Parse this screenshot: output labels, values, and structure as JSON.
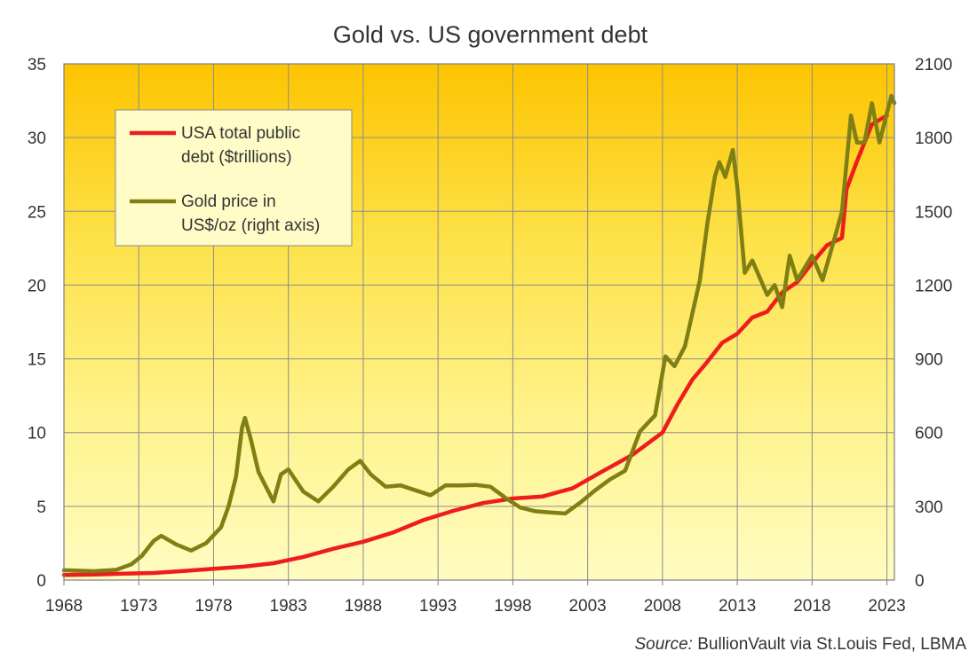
{
  "chart_data": {
    "type": "line",
    "title": "Gold vs. US government  debt",
    "source_label": "Source:",
    "source_text": " BullionVault via  St.Louis Fed, LBMA",
    "x_ticks": [
      "1968",
      "1973",
      "1978",
      "1983",
      "1988",
      "1993",
      "1998",
      "2003",
      "2008",
      "2013",
      "2018",
      "2023"
    ],
    "xlim": [
      1968,
      2023.5
    ],
    "y_left": {
      "ticks": [
        "0",
        "5",
        "10",
        "15",
        "20",
        "25",
        "30",
        "35"
      ],
      "lim": [
        0,
        35
      ]
    },
    "y_right": {
      "ticks": [
        "0",
        "300",
        "600",
        "900",
        "1200",
        "1500",
        "1800",
        "2100"
      ],
      "lim": [
        0,
        2100
      ]
    },
    "grid": true,
    "legend_position": "top-left",
    "series": [
      {
        "name_line1": "USA total public",
        "name_line2": "debt ($trillions)",
        "axis": "left",
        "color": "#ee1c1c",
        "x": [
          1968,
          1970,
          1972,
          1974,
          1976,
          1978,
          1980,
          1982,
          1984,
          1986,
          1988,
          1990,
          1992,
          1994,
          1996,
          1998,
          2000,
          2002,
          2004,
          2006,
          2008,
          2009,
          2010,
          2011,
          2012,
          2013,
          2014,
          2015,
          2016,
          2017,
          2018,
          2019,
          2020,
          2020.3,
          2021,
          2022,
          2023
        ],
        "values": [
          0.35,
          0.38,
          0.43,
          0.48,
          0.62,
          0.77,
          0.91,
          1.14,
          1.57,
          2.12,
          2.6,
          3.23,
          4.06,
          4.69,
          5.22,
          5.53,
          5.67,
          6.23,
          7.38,
          8.5,
          10.0,
          11.9,
          13.6,
          14.8,
          16.1,
          16.7,
          17.8,
          18.2,
          19.5,
          20.2,
          21.5,
          22.7,
          23.2,
          26.5,
          28.4,
          30.9,
          31.5
        ]
      },
      {
        "name_line1": "Gold price in",
        "name_line2": "US$/oz  (right axis)",
        "axis": "right",
        "color": "#7f7f14",
        "x": [
          1968,
          1970,
          1971.5,
          1972.5,
          1973.2,
          1974,
          1974.5,
          1975.5,
          1976.5,
          1977.5,
          1978.5,
          1979,
          1979.5,
          1979.9,
          1980.1,
          1980.5,
          1981,
          1981.5,
          1982,
          1982.5,
          1983,
          1984,
          1985,
          1986,
          1987,
          1987.8,
          1988.5,
          1989.5,
          1990.5,
          1991.5,
          1992.5,
          1993.5,
          1994.5,
          1995.5,
          1996.5,
          1997.5,
          1998.5,
          1999.5,
          2000.5,
          2001.5,
          2002.5,
          2003.5,
          2004.5,
          2005.5,
          2006.5,
          2007.5,
          2008.2,
          2008.8,
          2009.5,
          2010.5,
          2011,
          2011.5,
          2011.8,
          2012.2,
          2012.7,
          2013,
          2013.5,
          2014,
          2015,
          2015.5,
          2016,
          2016.5,
          2017,
          2018,
          2018.7,
          2019.5,
          2020,
          2020.6,
          2021,
          2021.5,
          2022,
          2022.5,
          2023,
          2023.3,
          2023.5
        ],
        "values": [
          40,
          36,
          42,
          64,
          98,
          160,
          180,
          145,
          120,
          150,
          215,
          300,
          420,
          620,
          660,
          570,
          440,
          380,
          320,
          430,
          450,
          360,
          320,
          380,
          450,
          485,
          430,
          380,
          385,
          365,
          345,
          385,
          385,
          387,
          380,
          335,
          295,
          280,
          275,
          271,
          315,
          365,
          410,
          445,
          605,
          670,
          910,
          870,
          950,
          1220,
          1450,
          1640,
          1700,
          1640,
          1750,
          1600,
          1250,
          1300,
          1160,
          1200,
          1110,
          1320,
          1220,
          1320,
          1220,
          1390,
          1500,
          1890,
          1780,
          1780,
          1940,
          1780,
          1900,
          1970,
          1940
        ]
      }
    ]
  }
}
